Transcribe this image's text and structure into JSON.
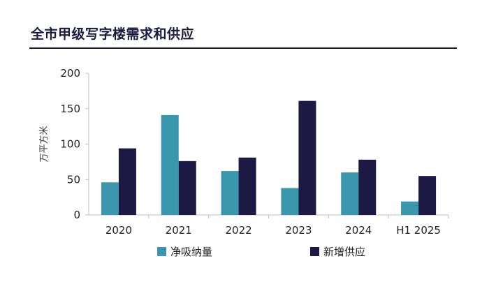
{
  "header": {
    "title": "全市甲级写字楼需求和供应"
  },
  "colors": {
    "title": "#1b1a3f",
    "axis": "#bfbfbf"
  },
  "chart_data": {
    "type": "bar",
    "categories": [
      "2020",
      "2021",
      "2022",
      "2023",
      "2024",
      "H1 2025"
    ],
    "series": [
      {
        "name": "净吸纳量",
        "color": "#3a97ad",
        "values": [
          46,
          141,
          62,
          38,
          60,
          19
        ]
      },
      {
        "name": "新增供应",
        "color": "#1c1a45",
        "values": [
          94,
          76,
          81,
          161,
          78,
          55
        ]
      }
    ],
    "ylabel": "万平方米",
    "ylim": [
      0,
      200
    ],
    "yticks": [
      0,
      50,
      100,
      150,
      200
    ],
    "grid": false,
    "legend": "bottom"
  }
}
